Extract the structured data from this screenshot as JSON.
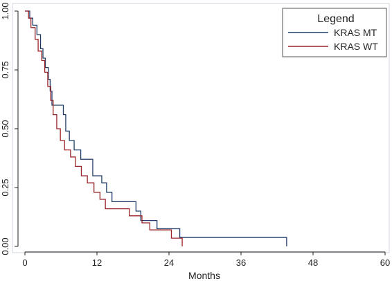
{
  "chart_data": {
    "type": "line",
    "step": true,
    "xlabel": "Months",
    "ylabel": "",
    "xlim": [
      0,
      60
    ],
    "ylim": [
      0,
      1
    ],
    "x_ticks": [
      0,
      12,
      24,
      36,
      48,
      60
    ],
    "x_tick_labels": [
      "0",
      "12",
      "24",
      "36",
      "48",
      "60"
    ],
    "y_ticks": [
      0,
      0.25,
      0.5,
      0.75,
      1
    ],
    "y_tick_labels": [
      "0.00",
      "0.25",
      "0.50",
      "0.75",
      "1.00"
    ],
    "grid": false,
    "legend": {
      "title": "Legend",
      "position": "top-right"
    },
    "series": [
      {
        "name": "KRAS MT",
        "color": "#1f3d68",
        "x": [
          0,
          0.8,
          1.3,
          2.0,
          2.6,
          3.0,
          3.4,
          3.9,
          4.2,
          4.5,
          4.8,
          5.0,
          6.4,
          6.8,
          7.4,
          8.2,
          9.3,
          11.3,
          12.8,
          13.6,
          14.5,
          18.5,
          19.3,
          22.0,
          25.8,
          43.6
        ],
        "y": [
          1.0,
          0.97,
          0.94,
          0.9,
          0.84,
          0.8,
          0.76,
          0.71,
          0.66,
          0.6,
          0.6,
          0.6,
          0.56,
          0.49,
          0.45,
          0.41,
          0.37,
          0.3,
          0.27,
          0.23,
          0.19,
          0.15,
          0.11,
          0.075,
          0.038,
          0.0
        ]
      },
      {
        "name": "KRAS WT",
        "color": "#9b2226",
        "x": [
          0,
          0.6,
          1.0,
          1.7,
          2.2,
          2.8,
          3.3,
          3.8,
          4.3,
          4.7,
          5.3,
          5.9,
          6.6,
          7.6,
          8.4,
          9.4,
          10.4,
          11.5,
          12.5,
          13.4,
          14.3,
          17.4,
          19.5,
          20.8,
          24.4,
          26.2
        ],
        "y": [
          1.0,
          0.97,
          0.93,
          0.88,
          0.83,
          0.79,
          0.74,
          0.68,
          0.62,
          0.56,
          0.5,
          0.45,
          0.41,
          0.38,
          0.34,
          0.3,
          0.27,
          0.23,
          0.2,
          0.16,
          0.16,
          0.13,
          0.1,
          0.07,
          0.035,
          0.0
        ]
      }
    ]
  }
}
